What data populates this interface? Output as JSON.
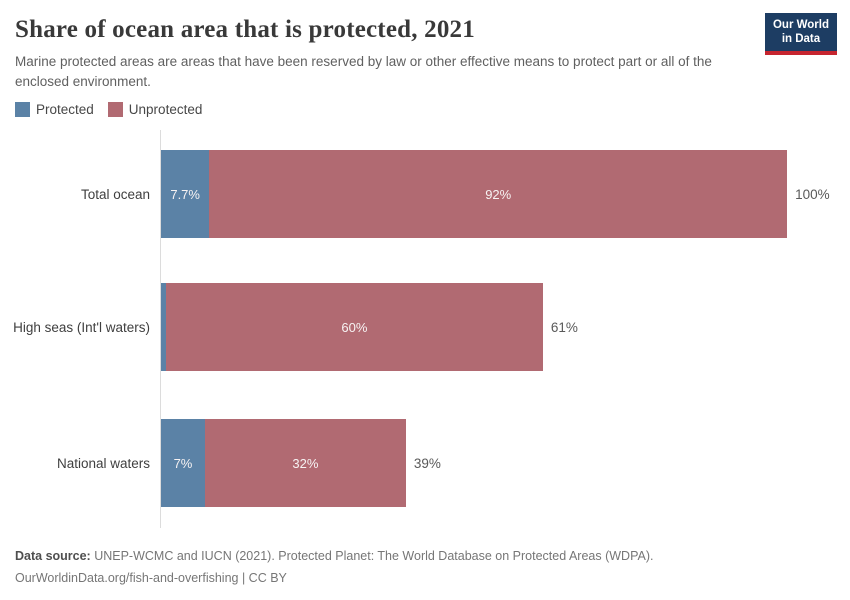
{
  "header": {
    "title": "Share of ocean area that is protected, 2021",
    "subtitle": "Marine protected areas are areas that have been reserved by law or other effective means to protect part or all of the enclosed environment.",
    "logo": {
      "line1": "Our World",
      "line2": "in Data"
    }
  },
  "legend": {
    "items": [
      {
        "label": "Protected",
        "color": "#5b82a6"
      },
      {
        "label": "Unprotected",
        "color": "#b16a72"
      }
    ]
  },
  "chart_data": {
    "type": "bar",
    "orientation": "horizontal",
    "stacked": true,
    "grid": false,
    "legend_position": "top-left",
    "xlim": [
      0,
      100
    ],
    "categories": [
      "Total ocean",
      "High seas (Int'l waters)",
      "National waters"
    ],
    "series": [
      {
        "name": "Protected",
        "color": "#5b82a6",
        "values": [
          7.7,
          0.8,
          7.0
        ],
        "labels": [
          "7.7%",
          "",
          "7%"
        ]
      },
      {
        "name": "Unprotected",
        "color": "#b16a72",
        "values": [
          92.0,
          60.0,
          32.0
        ],
        "labels": [
          "92%",
          "60%",
          "32%"
        ]
      }
    ],
    "totals": [
      "100%",
      "61%",
      "39%"
    ]
  },
  "footer": {
    "source_prefix": "Data source:",
    "source_text": " UNEP-WCMC and IUCN (2021). Protected Planet: The World Database on Protected Areas (WDPA).",
    "license_line": "OurWorldinData.org/fish-and-overfishing | CC BY"
  }
}
